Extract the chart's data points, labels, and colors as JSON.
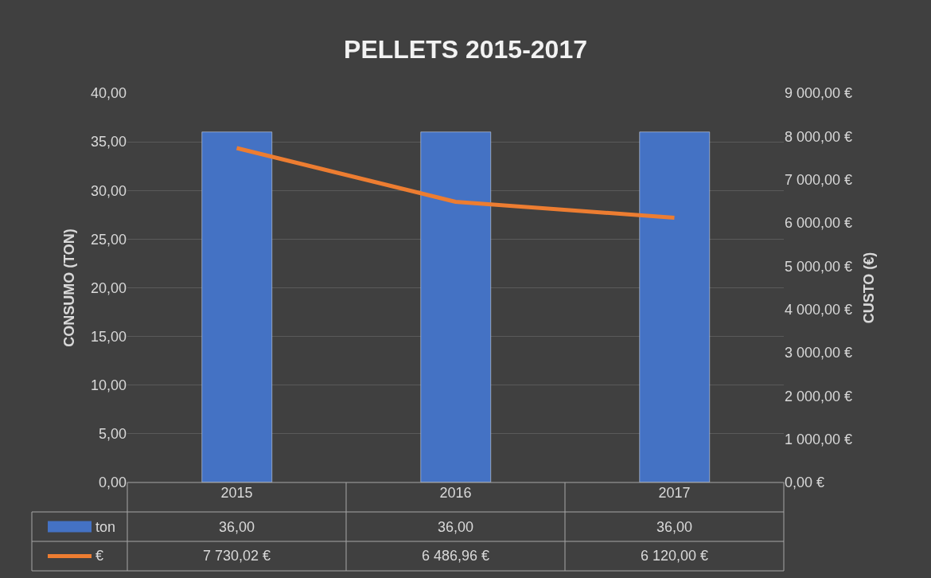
{
  "chart_data": {
    "type": "bar",
    "title": "PELLETS 2015-2017",
    "ylabel": "CONSUMO (TON)",
    "y2label": "CUSTO (€)",
    "categories": [
      "2015",
      "2016",
      "2017"
    ],
    "series": [
      {
        "name": "ton",
        "color": "#4472c4",
        "values": [
          36.0,
          36.0,
          36.0
        ],
        "value_labels": [
          "36,00",
          "36,00",
          "36,00"
        ]
      },
      {
        "name": "€",
        "type": "line",
        "axis": "y2",
        "color": "#ed7d31",
        "values": [
          7730.02,
          6486.96,
          6120.0
        ],
        "value_labels": [
          "7 730,02 €",
          "6 486,96 €",
          "6 120,00 €"
        ],
        "marker": "none",
        "line_style": "solid"
      }
    ],
    "ylim": [
      0,
      40
    ],
    "yticks": [
      {
        "value": 0,
        "label": "0,00"
      },
      {
        "value": 5,
        "label": "5,00"
      },
      {
        "value": 10,
        "label": "10,00"
      },
      {
        "value": 15,
        "label": "15,00"
      },
      {
        "value": 20,
        "label": "20,00"
      },
      {
        "value": 25,
        "label": "25,00"
      },
      {
        "value": 30,
        "label": "30,00"
      },
      {
        "value": 35,
        "label": "35,00"
      },
      {
        "value": 40,
        "label": "40,00"
      }
    ],
    "y2lim": [
      0,
      9000
    ],
    "y2ticks": [
      {
        "value": 0,
        "label": "0,00 €"
      },
      {
        "value": 1000,
        "label": "1 000,00 €"
      },
      {
        "value": 2000,
        "label": "2 000,00 €"
      },
      {
        "value": 3000,
        "label": "3 000,00 €"
      },
      {
        "value": 4000,
        "label": "4 000,00 €"
      },
      {
        "value": 5000,
        "label": "5 000,00 €"
      },
      {
        "value": 6000,
        "label": "6 000,00 €"
      },
      {
        "value": 7000,
        "label": "7 000,00 €"
      },
      {
        "value": 8000,
        "label": "8 000,00 €"
      },
      {
        "value": 9000,
        "label": "9 000,00 €"
      }
    ],
    "grid": "y",
    "legend": "bottom"
  }
}
